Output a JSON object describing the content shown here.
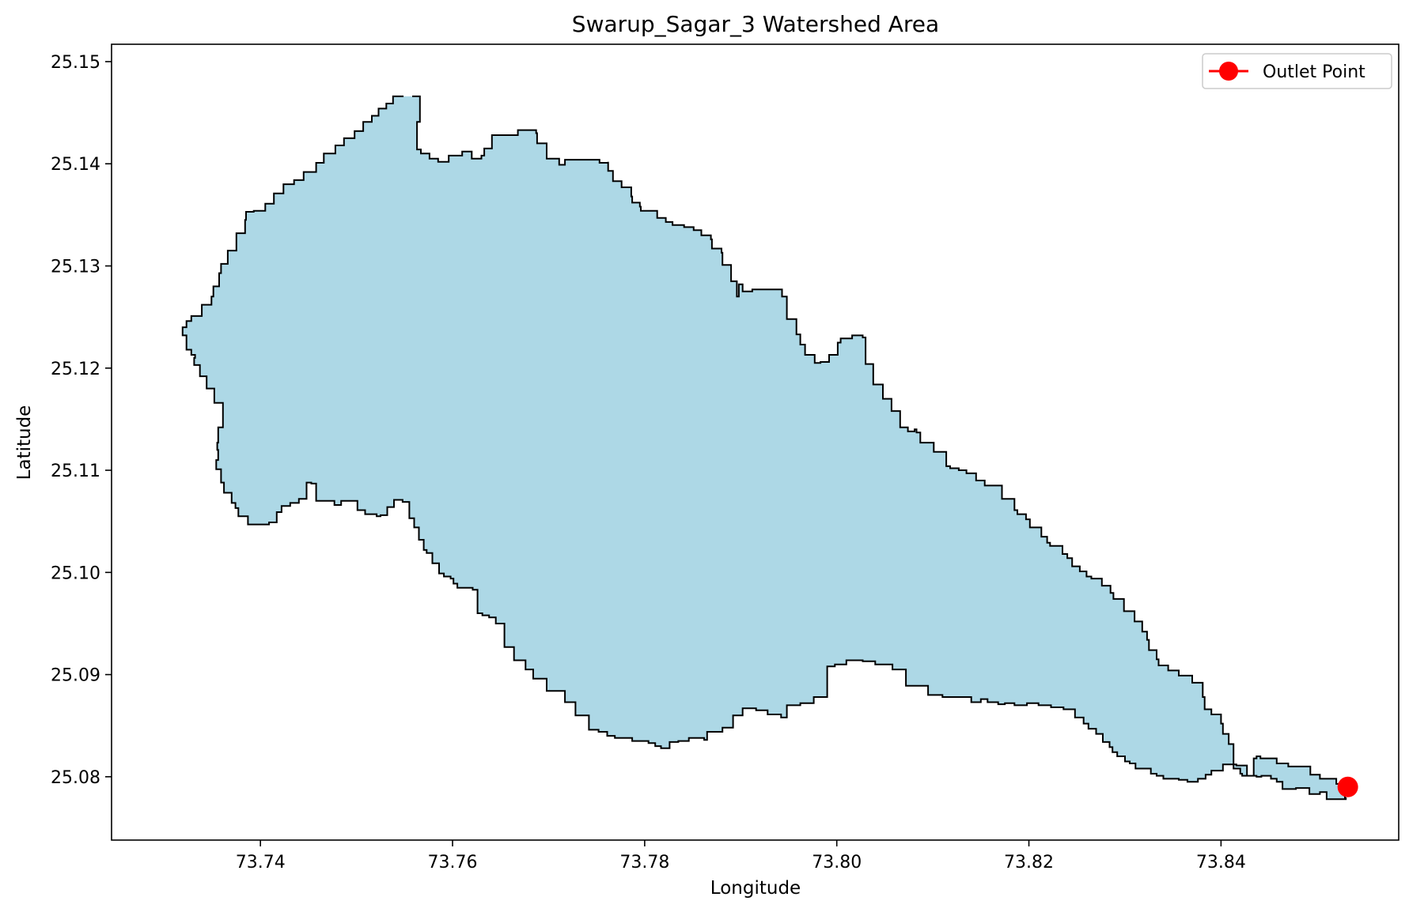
{
  "chart_data": {
    "type": "map",
    "title": "Swarup_Sagar_3 Watershed Area",
    "xlabel": "Longitude",
    "ylabel": "Latitude",
    "xlim": [
      73.7245,
      73.8585
    ],
    "ylim": [
      25.0738,
      25.1517
    ],
    "x_ticks": [
      73.74,
      73.76,
      73.78,
      73.8,
      73.82,
      73.84
    ],
    "x_tick_labels": [
      "73.74",
      "73.76",
      "73.78",
      "73.80",
      "73.82",
      "73.84"
    ],
    "y_ticks": [
      25.08,
      25.09,
      25.1,
      25.11,
      25.12,
      25.13,
      25.14,
      25.15
    ],
    "y_tick_labels": [
      "25.08",
      "25.09",
      "25.10",
      "25.11",
      "25.12",
      "25.13",
      "25.14",
      "25.15"
    ],
    "grid": false,
    "legend": {
      "placement": "top-right",
      "entries": [
        "Outlet Point"
      ]
    },
    "colors": {
      "watershed_fill": "#add8e6",
      "watershed_edge": "#000000",
      "outlet": "#ff0000"
    },
    "series": [
      {
        "name": "",
        "kind": "polygon",
        "lon": [
          73.7558,
          73.7566,
          73.7566,
          73.7563,
          73.7563,
          73.7567,
          73.7576,
          73.7585,
          73.7596,
          73.761,
          73.762,
          73.763,
          73.7633,
          73.7641,
          73.7668,
          73.7687,
          73.7688,
          73.7698,
          73.7698,
          73.7711,
          73.7717,
          73.7732,
          73.7753,
          73.7762,
          73.7762,
          73.7767,
          73.7767,
          73.7776,
          73.7786,
          73.7787,
          73.7795,
          73.7796,
          73.7813,
          73.7822,
          73.7829,
          73.7841,
          73.7851,
          73.7859,
          73.7869,
          73.787,
          73.788,
          73.7881,
          73.789,
          73.7896,
          73.7898,
          73.7902,
          73.7912,
          73.7929,
          73.7943,
          73.7948,
          73.7958,
          73.7962,
          73.7967,
          73.7977,
          73.7983,
          73.7992,
          73.8001,
          73.8004,
          73.8016,
          73.8027,
          73.803,
          73.8038,
          73.8048,
          73.8057,
          73.8066,
          73.8074,
          73.8081,
          73.8083,
          73.8087,
          73.8101,
          73.8114,
          73.8118,
          73.8127,
          73.8135,
          73.814,
          73.8145,
          73.8154,
          73.8172,
          73.8185,
          73.8188,
          73.8197,
          73.8201,
          73.8213,
          73.8219,
          73.8222,
          73.8235,
          73.824,
          73.8245,
          73.8253,
          73.826,
          73.8265,
          73.8276,
          73.8285,
          73.8288,
          73.8299,
          73.831,
          73.8318,
          73.8323,
          73.8325,
          73.8333,
          73.8335,
          73.8345,
          73.8356,
          73.837,
          73.8381,
          73.8383,
          73.839,
          73.84,
          73.8402,
          73.8408,
          73.8413,
          73.8413,
          73.842,
          73.8422,
          73.8434,
          73.8437,
          73.8441,
          73.8458,
          73.847,
          73.8493,
          73.8503,
          73.852,
          73.8523,
          73.8529,
          73.853,
          73.8527,
          73.851,
          73.8503,
          73.85,
          73.8492,
          73.8478,
          73.8464,
          73.8458,
          73.8452,
          73.8442,
          73.8437,
          73.8427,
          73.8416,
          73.8402,
          73.8395,
          73.839,
          73.8384,
          73.8376,
          73.8365,
          73.8356,
          73.834,
          73.8333,
          73.8327,
          73.8318,
          73.8311,
          73.8305,
          73.83,
          73.8292,
          73.8287,
          73.8284,
          73.8277,
          73.827,
          73.8262,
          73.8257,
          73.8248,
          73.8236,
          73.8223,
          73.821,
          73.8198,
          73.8185,
          73.8175,
          73.8168,
          73.8157,
          73.815,
          73.814,
          73.8125,
          73.811,
          73.8095,
          73.8072,
          73.8058,
          73.804,
          73.8027,
          73.801,
          73.7998,
          73.799,
          73.7976,
          73.7962,
          73.7948,
          73.7942,
          73.7928,
          73.7916,
          73.7902,
          73.7892,
          73.7881,
          73.7865,
          73.7862,
          73.7846,
          73.7835,
          73.7826,
          73.7817,
          73.7811,
          73.7804,
          73.7787,
          73.7781,
          73.7769,
          73.7761,
          73.7752,
          73.7742,
          73.7728,
          73.7717,
          73.7698,
          73.7684,
          73.7676,
          73.7664,
          73.7654,
          73.7645,
          73.7638,
          73.7631,
          73.7626,
          73.7621,
          73.7605,
          73.7601,
          73.7598,
          73.7591,
          73.7586,
          73.7579,
          73.7573,
          73.757,
          73.7565,
          73.756,
          73.7555,
          73.7548,
          73.7539,
          73.7532,
          73.7525,
          73.7521,
          73.7509,
          73.7501,
          73.7484,
          73.7477,
          73.7458,
          73.7453,
          73.7448,
          73.744,
          73.7431,
          73.7422,
          73.7417,
          73.7409,
          73.7403,
          73.7387,
          73.7377,
          73.7374,
          73.737,
          73.7362,
          73.7359,
          73.7354,
          73.7356,
          73.7355,
          73.7356,
          73.7361,
          73.7361,
          73.7352,
          73.7344,
          73.7337,
          73.7331,
          73.7332,
          73.7328,
          73.7323,
          73.7319,
          73.7323,
          73.7328,
          73.7339,
          73.7349,
          73.7351,
          73.7357,
          73.7359,
          73.7366,
          73.7375,
          73.7384,
          73.7385,
          73.7393,
          73.7405,
          73.7414,
          73.7424,
          73.7435,
          73.7445,
          73.7458,
          73.7466,
          73.7478,
          73.7487,
          73.7498,
          73.7507,
          73.7516,
          73.7523,
          73.7531,
          73.7538,
          73.7549,
          73.7558
        ],
        "lat": [
          25.1466,
          25.1464,
          25.1441,
          25.1437,
          25.1414,
          25.141,
          25.1405,
          25.1402,
          25.1408,
          25.1412,
          25.1405,
          25.1408,
          25.1415,
          25.1428,
          25.1433,
          25.143,
          25.142,
          25.1419,
          25.1405,
          25.1399,
          25.1404,
          25.1404,
          25.1401,
          25.1402,
          25.1393,
          25.1391,
          25.1383,
          25.1377,
          25.1368,
          25.1362,
          25.1358,
          25.1354,
          25.1347,
          25.1343,
          25.134,
          25.1338,
          25.1335,
          25.133,
          25.1326,
          25.1317,
          25.1313,
          25.1301,
          25.1285,
          25.127,
          25.1282,
          25.1275,
          25.1277,
          25.1277,
          25.127,
          25.1248,
          25.1233,
          25.1223,
          25.1213,
          25.1205,
          25.1206,
          25.1213,
          25.1225,
          25.1229,
          25.1232,
          25.123,
          25.1204,
          25.1184,
          25.117,
          25.1158,
          25.1142,
          25.1138,
          25.114,
          25.1137,
          25.1127,
          25.1118,
          25.1104,
          25.1102,
          25.11,
          25.1097,
          25.1097,
          25.109,
          25.1085,
          25.1072,
          25.1061,
          25.1057,
          25.1052,
          25.1044,
          25.1035,
          25.1029,
          25.1026,
          25.1018,
          25.1014,
          25.1006,
          25.1001,
          25.0996,
          25.0994,
          25.0987,
          25.098,
          25.0974,
          25.0962,
          25.0952,
          25.0942,
          25.0934,
          25.0924,
          25.0915,
          25.0909,
          25.0904,
          25.0899,
          25.0892,
          25.0878,
          25.0866,
          25.0861,
          25.0852,
          25.0842,
          25.0832,
          25.0823,
          25.0808,
          25.0803,
          25.0801,
          25.0818,
          25.082,
          25.0818,
          25.0813,
          25.081,
          25.0802,
          25.0798,
          25.0793,
          25.0789,
          25.0779,
          25.0778,
          25.0778,
          25.0785,
          25.0783,
          25.0783,
          25.0789,
          25.0788,
          25.0795,
          25.0798,
          25.0801,
          25.08,
          25.0801,
          25.0811,
          25.0812,
          25.0806,
          25.0806,
          25.0802,
          25.0798,
          25.0795,
          25.0797,
          25.0798,
          25.0801,
          25.0803,
          25.0808,
          25.0808,
          25.0813,
          25.0815,
          25.082,
          25.0824,
          25.0829,
          25.0834,
          25.0842,
          25.0847,
          25.0852,
          25.0858,
          25.0866,
          25.0868,
          25.087,
          25.0872,
          25.087,
          25.0872,
          25.0871,
          25.0873,
          25.0876,
          25.0873,
          25.0878,
          25.0878,
          25.088,
          25.0889,
          25.0905,
          25.091,
          25.0913,
          25.0914,
          25.091,
          25.0908,
          25.0878,
          25.0872,
          25.087,
          25.0858,
          25.0861,
          25.0865,
          25.0867,
          25.086,
          25.0848,
          25.0844,
          25.0836,
          25.0838,
          25.0835,
          25.0834,
          25.0828,
          25.083,
          25.0833,
          25.0835,
          25.0838,
          25.0838,
          25.084,
          25.0844,
          25.0846,
          25.086,
          25.0873,
          25.0884,
          25.0896,
          25.0905,
          25.0914,
          25.0927,
          25.095,
          25.0956,
          25.0958,
          25.096,
          25.0983,
          25.0985,
          25.0989,
          25.0994,
          25.0996,
          25.0999,
          25.1009,
          25.1019,
          25.1022,
          25.1032,
          25.1044,
          25.1053,
          25.1069,
          25.1071,
          25.1064,
          25.1056,
          25.1055,
          25.1057,
          25.1061,
          25.107,
          25.1066,
          25.107,
          25.1087,
          25.1088,
          25.1072,
          25.1068,
          25.1065,
          25.1059,
          25.1049,
          25.1047,
          25.1047,
          25.1055,
          25.1063,
          25.1068,
          25.1078,
          25.1088,
          25.1101,
          25.111,
          25.112,
          25.1127,
          25.1142,
          25.1154,
          25.1166,
          25.118,
          25.1192,
          25.1203,
          25.121,
          25.1213,
          25.1218,
          25.1232,
          25.124,
          25.1246,
          25.1251,
          25.1262,
          25.127,
          25.128,
          25.1293,
          25.1302,
          25.1315,
          25.1332,
          25.1345,
          25.1353,
          25.1354,
          25.1361,
          25.1371,
          25.138,
          25.1384,
          25.1392,
          25.1401,
          25.141,
          25.1418,
          25.1425,
          25.1432,
          25.1441,
          25.1447,
          25.1454,
          25.1459,
          25.1466
        ]
      },
      {
        "name": "Outlet Point",
        "kind": "point",
        "lon": 73.8532,
        "lat": 25.079
      }
    ]
  }
}
